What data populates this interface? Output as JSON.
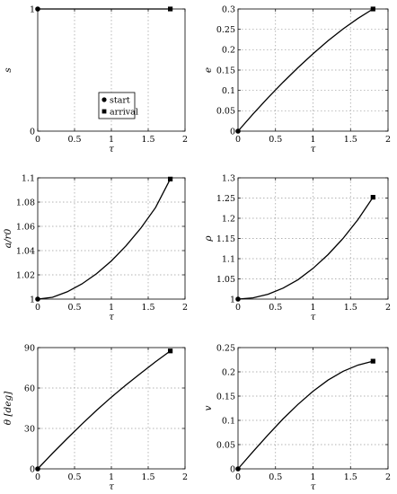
{
  "chart_data": [
    {
      "type": "line",
      "xlabel": "τ",
      "ylabel": "s",
      "xlim": [
        0,
        2
      ],
      "ylim": [
        0,
        1
      ],
      "xticks": [
        "0",
        "0.5",
        "1",
        "1.5",
        "2"
      ],
      "yticks": [
        {
          "v": 0,
          "label": "0"
        },
        {
          "v": 1,
          "label": "1"
        }
      ],
      "grid": true,
      "x": [
        0,
        0.2,
        0.4,
        0.6,
        0.8,
        1.0,
        1.2,
        1.4,
        1.6,
        1.8
      ],
      "y": [
        1,
        1,
        1,
        1,
        1,
        1,
        1,
        1,
        1,
        1
      ],
      "start": {
        "x": 0,
        "y": 1
      },
      "arrival": {
        "x": 1.8,
        "y": 1
      },
      "legend": {
        "placement": "center-left",
        "entries": [
          {
            "marker": "circle",
            "label": "start"
          },
          {
            "marker": "square",
            "label": "arrival"
          }
        ]
      }
    },
    {
      "type": "line",
      "xlabel": "τ",
      "ylabel": "e",
      "xlim": [
        0,
        2
      ],
      "ylim": [
        0,
        0.3
      ],
      "xticks": [
        "0",
        "0.5",
        "1",
        "1.5",
        "2"
      ],
      "yticks": [
        {
          "v": 0,
          "label": "0"
        },
        {
          "v": 0.05,
          "label": "0.05"
        },
        {
          "v": 0.1,
          "label": "0.1"
        },
        {
          "v": 0.15,
          "label": "0.15"
        },
        {
          "v": 0.2,
          "label": "0.2"
        },
        {
          "v": 0.25,
          "label": "0.25"
        },
        {
          "v": 0.3,
          "label": "0.3"
        }
      ],
      "grid": true,
      "x": [
        0,
        0.2,
        0.4,
        0.6,
        0.8,
        1.0,
        1.2,
        1.4,
        1.6,
        1.8
      ],
      "y": [
        0,
        0.042,
        0.082,
        0.12,
        0.156,
        0.19,
        0.222,
        0.251,
        0.277,
        0.3
      ],
      "start": {
        "x": 0,
        "y": 0
      },
      "arrival": {
        "x": 1.8,
        "y": 0.3
      }
    },
    {
      "type": "line",
      "xlabel": "τ",
      "ylabel": "a/r0",
      "xlim": [
        0,
        2
      ],
      "ylim": [
        1,
        1.1
      ],
      "xticks": [
        "0",
        "0.5",
        "1",
        "1.5",
        "2"
      ],
      "yticks": [
        {
          "v": 1,
          "label": "1"
        },
        {
          "v": 1.02,
          "label": "1.02"
        },
        {
          "v": 1.04,
          "label": "1.04"
        },
        {
          "v": 1.06,
          "label": "1.06"
        },
        {
          "v": 1.08,
          "label": "1.08"
        },
        {
          "v": 1.1,
          "label": "1.1"
        }
      ],
      "grid": true,
      "x": [
        0,
        0.2,
        0.4,
        0.6,
        0.8,
        1.0,
        1.2,
        1.4,
        1.6,
        1.8
      ],
      "y": [
        1.0,
        1.0015,
        1.006,
        1.0125,
        1.021,
        1.0315,
        1.044,
        1.0585,
        1.0755,
        1.099
      ],
      "start": {
        "x": 0,
        "y": 1
      },
      "arrival": {
        "x": 1.8,
        "y": 1.099
      }
    },
    {
      "type": "line",
      "xlabel": "τ",
      "ylabel": "ρ",
      "xlim": [
        0,
        2
      ],
      "ylim": [
        1,
        1.3
      ],
      "xticks": [
        "0",
        "0.5",
        "1",
        "1.5",
        "2"
      ],
      "yticks": [
        {
          "v": 1,
          "label": "1"
        },
        {
          "v": 1.05,
          "label": "1.05"
        },
        {
          "v": 1.1,
          "label": "1.1"
        },
        {
          "v": 1.15,
          "label": "1.15"
        },
        {
          "v": 1.2,
          "label": "1.2"
        },
        {
          "v": 1.25,
          "label": "1.25"
        },
        {
          "v": 1.3,
          "label": "1.3"
        }
      ],
      "grid": true,
      "x": [
        0,
        0.2,
        0.4,
        0.6,
        0.8,
        1.0,
        1.2,
        1.4,
        1.6,
        1.8
      ],
      "y": [
        1.0,
        1.003,
        1.012,
        1.027,
        1.048,
        1.076,
        1.11,
        1.15,
        1.197,
        1.252
      ],
      "start": {
        "x": 0,
        "y": 1
      },
      "arrival": {
        "x": 1.8,
        "y": 1.252
      }
    },
    {
      "type": "line",
      "xlabel": "τ",
      "ylabel": "θ [deg]",
      "xlim": [
        0,
        2
      ],
      "ylim": [
        0,
        90
      ],
      "xticks": [
        "0",
        "0.5",
        "1",
        "1.5",
        "2"
      ],
      "yticks": [
        {
          "v": 0,
          "label": "0"
        },
        {
          "v": 30,
          "label": "30"
        },
        {
          "v": 60,
          "label": "60"
        },
        {
          "v": 90,
          "label": "90"
        }
      ],
      "grid": true,
      "x": [
        0,
        0.2,
        0.4,
        0.6,
        0.8,
        1.0,
        1.2,
        1.4,
        1.6,
        1.8
      ],
      "y": [
        0,
        11.5,
        22.5,
        33.2,
        43.5,
        53.2,
        62.3,
        71.0,
        79.5,
        87.5
      ],
      "start": {
        "x": 0,
        "y": 0
      },
      "arrival": {
        "x": 1.8,
        "y": 87.5
      }
    },
    {
      "type": "line",
      "xlabel": "τ",
      "ylabel": "v",
      "xlim": [
        0,
        2
      ],
      "ylim": [
        0,
        0.25
      ],
      "xticks": [
        "0",
        "0.5",
        "1",
        "1.5",
        "2"
      ],
      "yticks": [
        {
          "v": 0,
          "label": "0"
        },
        {
          "v": 0.05,
          "label": "0.05"
        },
        {
          "v": 0.1,
          "label": "0.1"
        },
        {
          "v": 0.15,
          "label": "0.15"
        },
        {
          "v": 0.2,
          "label": "0.2"
        },
        {
          "v": 0.25,
          "label": "0.25"
        }
      ],
      "grid": true,
      "x": [
        0,
        0.2,
        0.4,
        0.6,
        0.8,
        1.0,
        1.2,
        1.4,
        1.6,
        1.8
      ],
      "y": [
        0,
        0.0355,
        0.07,
        0.103,
        0.133,
        0.16,
        0.183,
        0.201,
        0.214,
        0.222
      ],
      "start": {
        "x": 0,
        "y": 0
      },
      "arrival": {
        "x": 1.8,
        "y": 0.222
      }
    }
  ]
}
